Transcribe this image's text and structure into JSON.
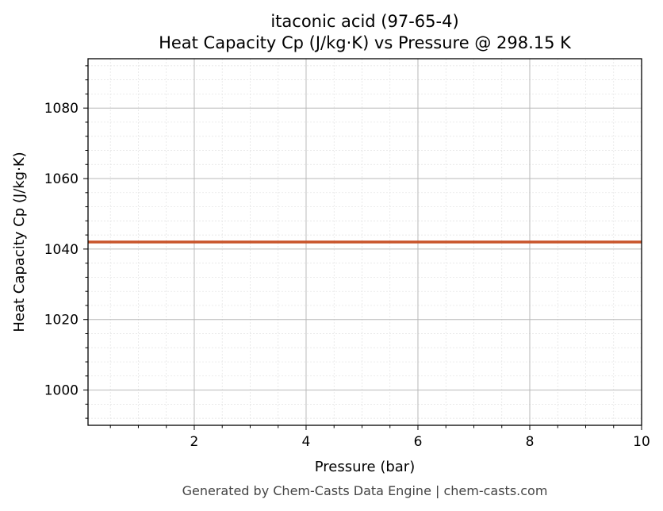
{
  "chart_data": {
    "type": "line",
    "title": "itaconic acid (97-65-4)",
    "subtitle": "Heat Capacity Cp (J/kg·K) vs Pressure @ 298.15 K",
    "xlabel": "Pressure (bar)",
    "ylabel": "Heat Capacity Cp (J/kg·K)",
    "xlim": [
      0.1,
      10
    ],
    "ylim": [
      990,
      1094
    ],
    "x_major_ticks": [
      2,
      4,
      6,
      8,
      10
    ],
    "x_minor_step": 0.5,
    "y_major_ticks": [
      1000,
      1020,
      1040,
      1060,
      1080
    ],
    "y_minor_step": 4,
    "grid": true,
    "series": [
      {
        "color": "#c8542a",
        "x": [
          0.1,
          1,
          2,
          3,
          4,
          5,
          6,
          7,
          8,
          9,
          10
        ],
        "y": [
          1042,
          1042,
          1042,
          1042,
          1042,
          1042,
          1042,
          1042,
          1042,
          1042,
          1042
        ]
      }
    ]
  },
  "footer": "Generated by Chem-Casts Data Engine | chem-casts.com"
}
